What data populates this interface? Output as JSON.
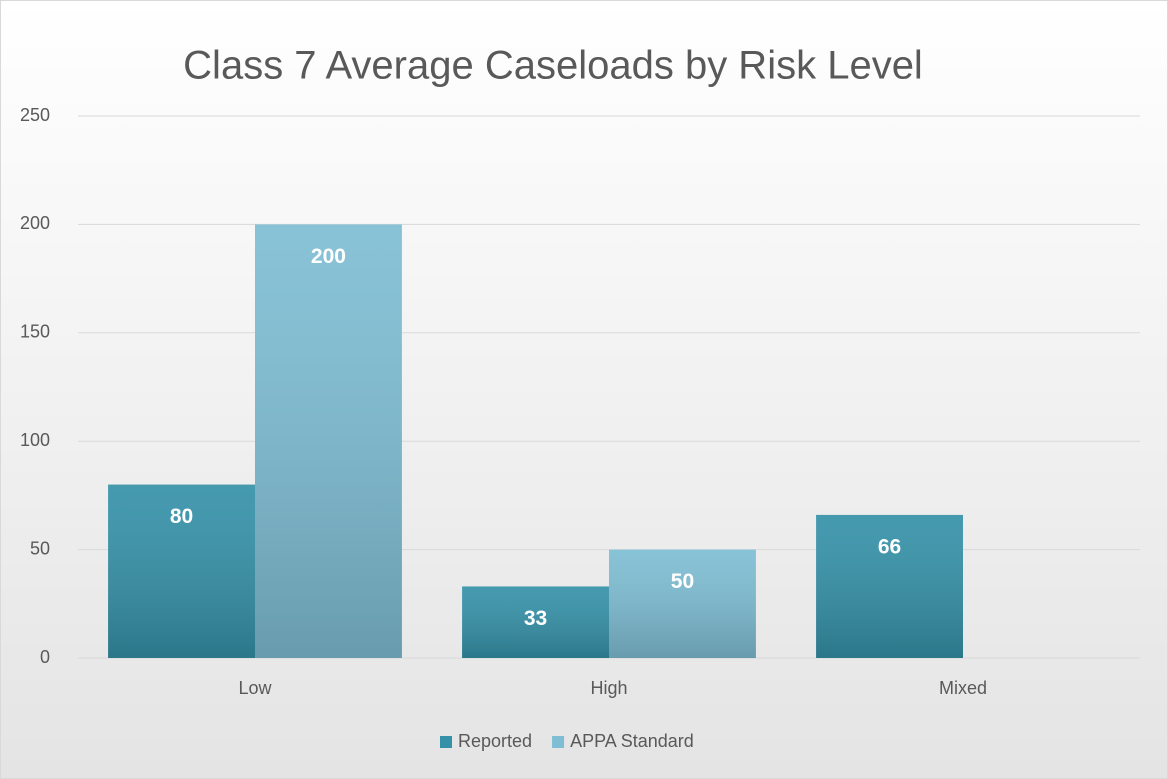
{
  "chart_data": {
    "type": "bar",
    "title": "Class 7 Average Caseloads by Risk Level",
    "categories": [
      "Low",
      "High",
      "Mixed"
    ],
    "series": [
      {
        "name": "Reported",
        "color": "#3591a8",
        "values": [
          80,
          33,
          66
        ]
      },
      {
        "name": "APPA Standard",
        "color": "#7ebdd3",
        "values": [
          200,
          50,
          null
        ]
      }
    ],
    "ylim": [
      0,
      250
    ],
    "yticks": [
      0,
      50,
      100,
      150,
      200,
      250
    ],
    "grid": true,
    "legend": "bottom"
  }
}
